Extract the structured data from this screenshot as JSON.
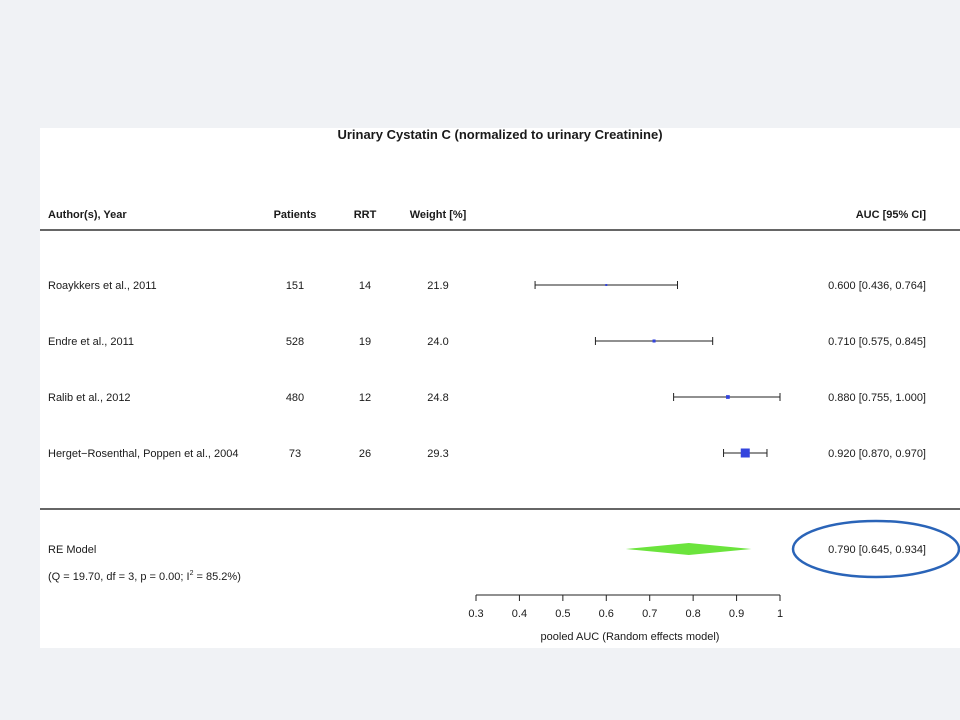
{
  "chart_data": {
    "type": "forest",
    "title": "Urinary Cystatin C (normalized to urinary Creatinine)",
    "columns": {
      "author": "Author(s), Year",
      "patients": "Patients",
      "rrt": "RRT",
      "weight": "Weight [%]",
      "effect": "AUC [95% CI]"
    },
    "studies": [
      {
        "author": "Roaykkers et al., 2011",
        "patients": "151",
        "rrt": "14",
        "weight": "21.9",
        "auc": 0.6,
        "lower": 0.436,
        "upper": 0.764,
        "effect_text": "0.600 [0.436, 0.764]"
      },
      {
        "author": "Endre et al., 2011",
        "patients": "528",
        "rrt": "19",
        "weight": "24.0",
        "auc": 0.71,
        "lower": 0.575,
        "upper": 0.845,
        "effect_text": "0.710 [0.575, 0.845]"
      },
      {
        "author": "Ralib et al., 2012",
        "patients": "480",
        "rrt": "12",
        "weight": "24.8",
        "auc": 0.88,
        "lower": 0.755,
        "upper": 1.0,
        "effect_text": "0.880 [0.755, 1.000]"
      },
      {
        "author": "Herget−Rosenthal, Poppen et al., 2004",
        "patients": "73",
        "rrt": "26",
        "weight": "29.3",
        "auc": 0.92,
        "lower": 0.87,
        "upper": 0.97,
        "effect_text": "0.920 [0.870, 0.970]"
      }
    ],
    "summary": {
      "label": "RE Model",
      "estimate": 0.79,
      "lower": 0.645,
      "upper": 0.934,
      "effect_text": "0.790 [0.645, 0.934]",
      "heterogeneity": {
        "prefix": "(Q = 19.70, df = 3, p = 0.00; I",
        "sup": "2",
        "suffix": " = 85.2%)"
      },
      "diamond_color": "#6be43c"
    },
    "x_axis": {
      "label": "pooled AUC (Random effects model)",
      "xlim": [
        0.3,
        1.0
      ],
      "ticks": [
        0.3,
        0.4,
        0.5,
        0.6,
        0.7,
        0.8,
        0.9,
        1.0
      ],
      "tick_labels": [
        "0.3",
        "0.4",
        "0.5",
        "0.6",
        "0.7",
        "0.8",
        "0.9",
        "1"
      ]
    },
    "marker_color": "#3344dd",
    "highlight": {
      "target": "summary effect",
      "color": "#2a64b8"
    }
  }
}
